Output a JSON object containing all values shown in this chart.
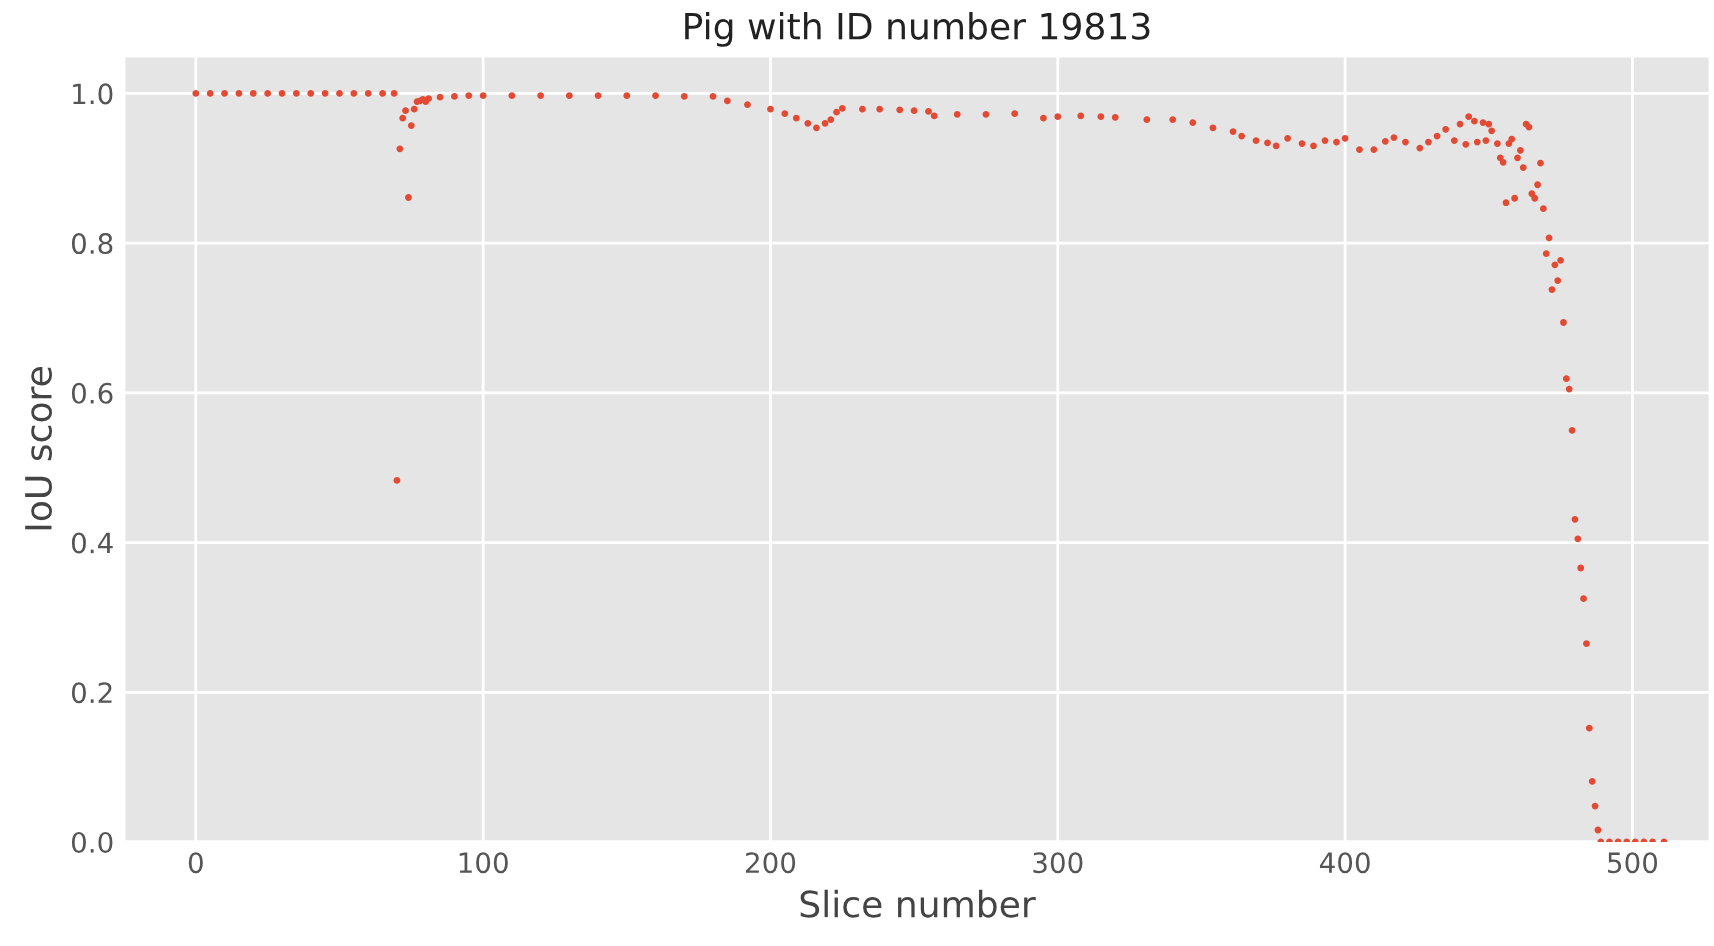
{
  "chart_data": {
    "type": "scatter",
    "title": "Pig with ID number 19813",
    "xlabel": "Slice number",
    "ylabel": "IoU score",
    "xlim": [
      -25,
      527
    ],
    "ylim": [
      0,
      1.05
    ],
    "xticks": [
      0,
      100,
      200,
      300,
      400,
      500
    ],
    "yticks": [
      {
        "value": 0,
        "label": "0.0"
      },
      {
        "value": 0.2,
        "label": "0.2"
      },
      {
        "value": 0.4,
        "label": "0.4"
      },
      {
        "value": 0.6,
        "label": "0.6"
      },
      {
        "value": 0.8,
        "label": "0.8"
      },
      {
        "value": 1.0,
        "label": "1.0"
      }
    ],
    "grid": true,
    "marker": "circle",
    "series": [
      {
        "color": "#e24a33",
        "x": [
          0,
          5,
          10,
          15,
          20,
          25,
          30,
          35,
          40,
          45,
          50,
          55,
          60,
          65,
          69,
          70,
          71,
          72,
          73,
          74,
          75,
          76,
          77,
          78,
          79,
          80,
          81,
          85,
          90,
          95,
          100,
          110,
          120,
          130,
          140,
          150,
          160,
          170,
          180,
          185,
          192,
          200,
          205,
          209,
          213,
          216,
          219,
          221,
          223,
          225,
          232,
          238,
          245,
          250,
          255,
          257,
          265,
          275,
          285,
          295,
          300,
          308,
          315,
          320,
          331,
          340,
          347,
          354,
          361,
          364,
          369,
          373,
          376,
          380,
          385,
          389,
          393,
          397,
          400,
          405,
          410,
          414,
          417,
          421,
          426,
          429,
          432,
          435,
          438,
          440,
          442,
          443,
          445,
          446,
          448,
          449,
          450,
          451,
          453,
          454,
          455,
          456,
          457,
          458,
          459,
          460,
          461,
          462,
          463,
          464,
          465,
          466,
          467,
          468,
          469,
          470,
          471,
          472,
          473,
          474,
          475,
          476,
          477,
          478,
          479,
          480,
          481,
          482,
          483,
          484,
          485,
          486,
          487,
          488,
          489,
          492,
          495,
          498,
          501,
          504,
          507,
          511
        ],
        "values": [
          1.0,
          1.0,
          1.0,
          1.0,
          1.0,
          1.0,
          1.0,
          1.0,
          1.0,
          1.0,
          1.0,
          1.0,
          1.0,
          1.0,
          1.0,
          0.483,
          0.926,
          0.967,
          0.977,
          0.861,
          0.957,
          0.979,
          0.989,
          0.99,
          0.992,
          0.989,
          0.993,
          0.995,
          0.996,
          0.997,
          0.997,
          0.997,
          0.997,
          0.997,
          0.997,
          0.997,
          0.997,
          0.996,
          0.996,
          0.99,
          0.985,
          0.979,
          0.973,
          0.967,
          0.96,
          0.954,
          0.96,
          0.965,
          0.975,
          0.98,
          0.979,
          0.979,
          0.978,
          0.977,
          0.976,
          0.97,
          0.972,
          0.972,
          0.973,
          0.967,
          0.969,
          0.97,
          0.969,
          0.968,
          0.965,
          0.965,
          0.961,
          0.954,
          0.949,
          0.943,
          0.937,
          0.934,
          0.93,
          0.94,
          0.933,
          0.93,
          0.937,
          0.935,
          0.94,
          0.925,
          0.925,
          0.936,
          0.941,
          0.935,
          0.927,
          0.935,
          0.943,
          0.952,
          0.937,
          0.959,
          0.932,
          0.969,
          0.963,
          0.935,
          0.961,
          0.937,
          0.959,
          0.95,
          0.933,
          0.914,
          0.908,
          0.854,
          0.933,
          0.939,
          0.86,
          0.914,
          0.924,
          0.901,
          0.959,
          0.955,
          0.866,
          0.86,
          0.878,
          0.907,
          0.846,
          0.786,
          0.807,
          0.738,
          0.771,
          0.75,
          0.777,
          0.694,
          0.619,
          0.605,
          0.55,
          0.431,
          0.405,
          0.366,
          0.325,
          0.265,
          0.152,
          0.081,
          0.048,
          0.016,
          0.0,
          0.0,
          0.0,
          0.0,
          0.0,
          0.0,
          0.0,
          0.0
        ]
      }
    ]
  }
}
